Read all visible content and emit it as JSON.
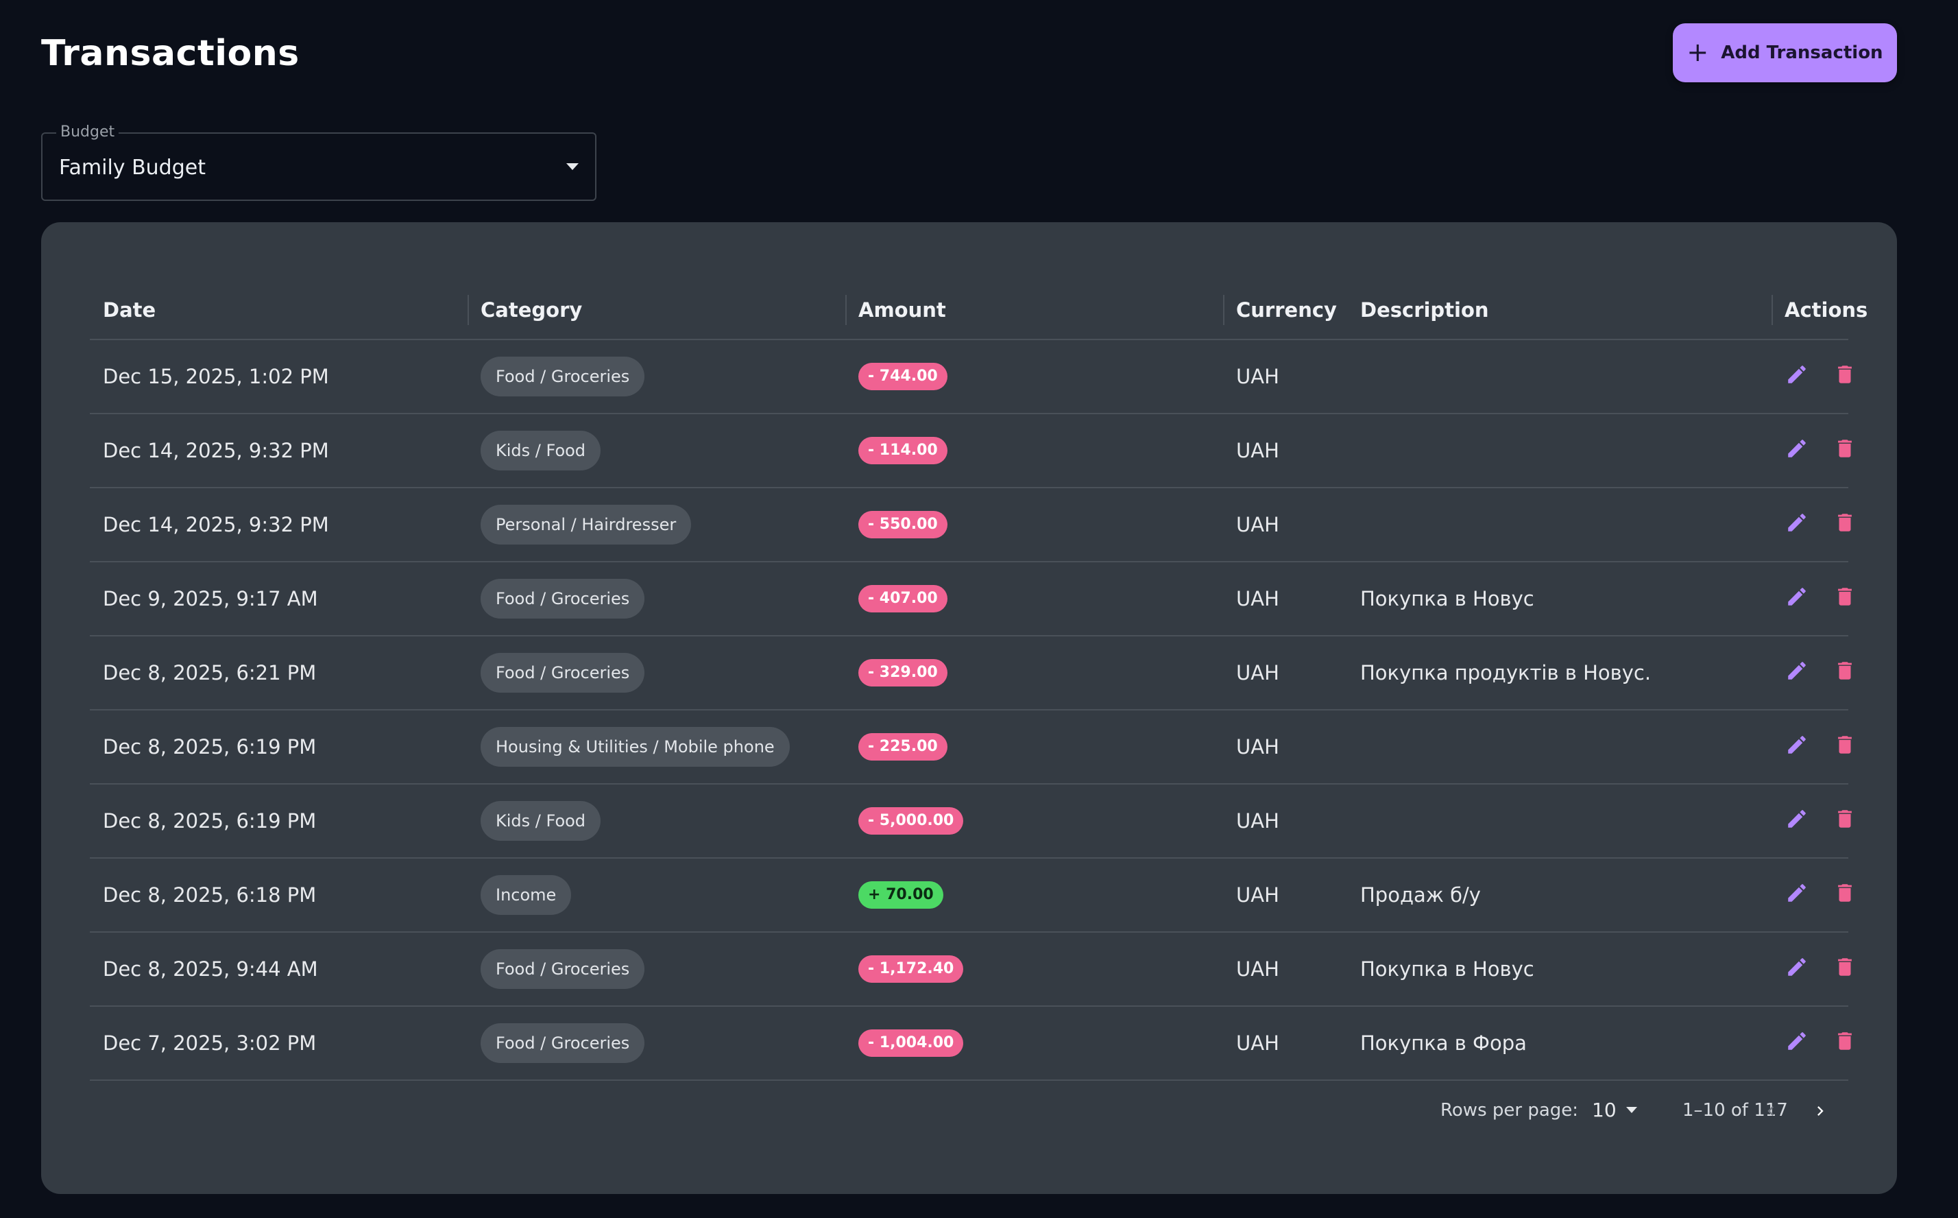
{
  "header": {
    "title": "Transactions",
    "add_button_label": "Add Transaction"
  },
  "budget": {
    "label": "Budget",
    "value": "Family Budget"
  },
  "table": {
    "columns": {
      "date": "Date",
      "category": "Category",
      "amount": "Amount",
      "currency": "Currency",
      "description": "Description",
      "actions": "Actions"
    },
    "rows": [
      {
        "date": "Dec 15, 2025, 1:02 PM",
        "category": "Food / Groceries",
        "amount": "- 744.00",
        "type": "expense",
        "currency": "UAH",
        "description": ""
      },
      {
        "date": "Dec 14, 2025, 9:32 PM",
        "category": "Kids / Food",
        "amount": "- 114.00",
        "type": "expense",
        "currency": "UAH",
        "description": ""
      },
      {
        "date": "Dec 14, 2025, 9:32 PM",
        "category": "Personal / Hairdresser",
        "amount": "- 550.00",
        "type": "expense",
        "currency": "UAH",
        "description": ""
      },
      {
        "date": "Dec 9, 2025, 9:17 AM",
        "category": "Food / Groceries",
        "amount": "- 407.00",
        "type": "expense",
        "currency": "UAH",
        "description": "Покупка в Новус"
      },
      {
        "date": "Dec 8, 2025, 6:21 PM",
        "category": "Food / Groceries",
        "amount": "- 329.00",
        "type": "expense",
        "currency": "UAH",
        "description": "Покупка продуктів в Новус."
      },
      {
        "date": "Dec 8, 2025, 6:19 PM",
        "category": "Housing & Utilities / Mobile phone",
        "amount": "- 225.00",
        "type": "expense",
        "currency": "UAH",
        "description": ""
      },
      {
        "date": "Dec 8, 2025, 6:19 PM",
        "category": "Kids / Food",
        "amount": "- 5,000.00",
        "type": "expense",
        "currency": "UAH",
        "description": ""
      },
      {
        "date": "Dec 8, 2025, 6:18 PM",
        "category": "Income",
        "amount": "+ 70.00",
        "type": "income",
        "currency": "UAH",
        "description": "Продаж б/у"
      },
      {
        "date": "Dec 8, 2025, 9:44 AM",
        "category": "Food / Groceries",
        "amount": "- 1,172.40",
        "type": "expense",
        "currency": "UAH",
        "description": "Покупка в Новус"
      },
      {
        "date": "Dec 7, 2025, 3:02 PM",
        "category": "Food / Groceries",
        "amount": "- 1,004.00",
        "type": "expense",
        "currency": "UAH",
        "description": "Покупка в Фора"
      }
    ]
  },
  "pagination": {
    "rows_per_page_label": "Rows per page:",
    "rows_per_page": "10",
    "range": "1–10 of 117"
  },
  "icons": {
    "add": "plus-icon",
    "dropdown": "chevron-down-icon",
    "edit": "pencil-icon",
    "delete": "trash-icon",
    "prev": "chevron-left-icon",
    "next": "chevron-right-icon"
  },
  "colors": {
    "accent": "#b388ff",
    "expense": "#f06292",
    "income": "#4cd964",
    "delete": "#f06292"
  }
}
